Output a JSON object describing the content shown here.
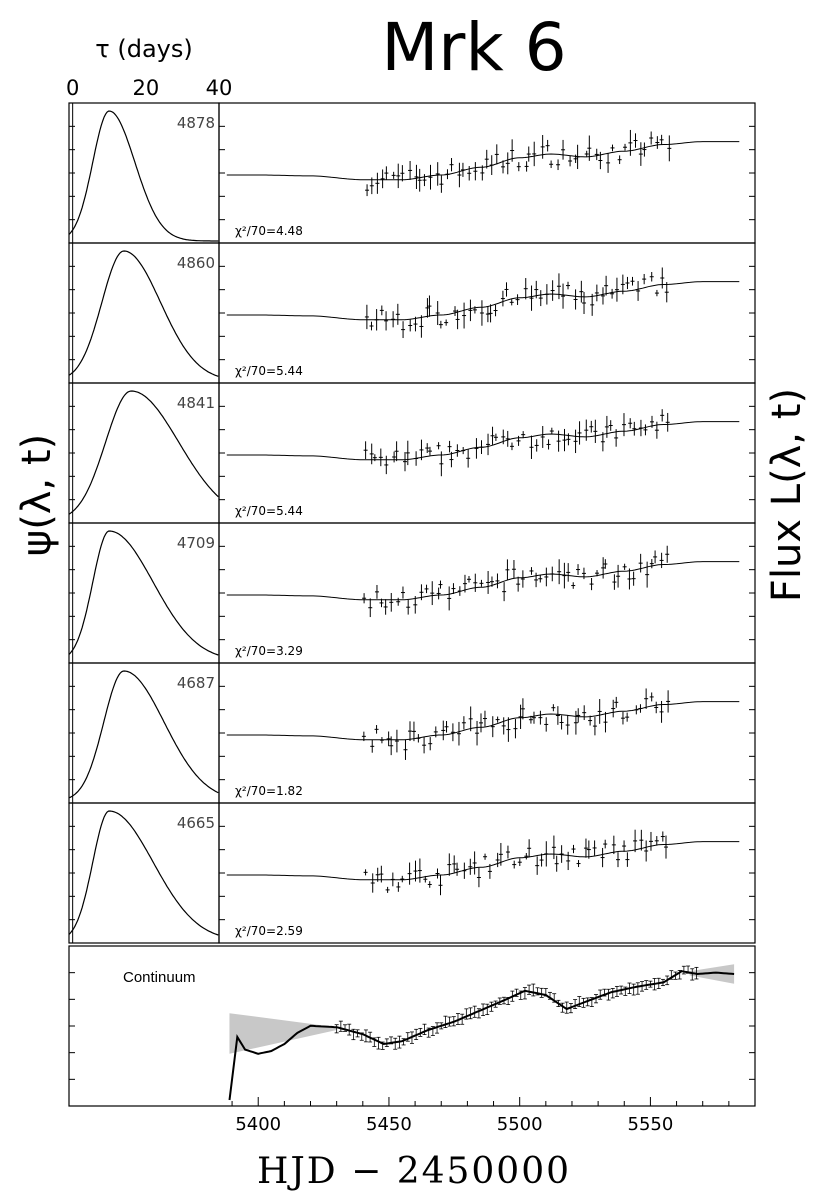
{
  "chart_data": {
    "type": "line",
    "title": "Mrk 6",
    "tau_axis": {
      "label": "τ (days)",
      "ticks": [
        0,
        20,
        40
      ],
      "range": [
        -1,
        40
      ]
    },
    "left_ylabel": "ψ(λ, t)",
    "right_ylabel": "Flux L(λ, t)",
    "xlabel": "HJD − 2450000",
    "xlim": [
      5385,
      5590
    ],
    "xticks": [
      5400,
      5450,
      5500,
      5550
    ],
    "panels": [
      {
        "wavelength": "4878",
        "chi2": "χ²/70=4.48",
        "tf_peak": 10,
        "tf_rise": 4.5,
        "tf_fall": 7
      },
      {
        "wavelength": "4860",
        "chi2": "χ²/70=5.44",
        "tf_peak": 14,
        "tf_rise": 6,
        "tf_fall": 10
      },
      {
        "wavelength": "4841",
        "chi2": "χ²/70=5.44",
        "tf_peak": 16,
        "tf_rise": 7,
        "tf_fall": 13
      },
      {
        "wavelength": "4709",
        "chi2": "χ²/70=3.29",
        "tf_peak": 10,
        "tf_rise": 4.5,
        "tf_fall": 12
      },
      {
        "wavelength": "4687",
        "chi2": "χ²/70=1.82",
        "tf_peak": 14,
        "tf_rise": 5.5,
        "tf_fall": 11
      },
      {
        "wavelength": "4665",
        "chi2": "χ²/70=2.59",
        "tf_peak": 10,
        "tf_rise": 4.5,
        "tf_fall": 12
      }
    ],
    "continuum": {
      "label": "Continuum",
      "model_x": [
        5389,
        5392,
        5395,
        5400,
        5405,
        5410,
        5415,
        5420,
        5430,
        5440,
        5448,
        5455,
        5465,
        5475,
        5485,
        5495,
        5502,
        5510,
        5518,
        5525,
        5535,
        5545,
        5555,
        5562,
        5568,
        5575,
        5582
      ],
      "model_y": [
        0.0,
        0.45,
        0.36,
        0.33,
        0.35,
        0.4,
        0.48,
        0.53,
        0.52,
        0.47,
        0.4,
        0.42,
        0.5,
        0.56,
        0.64,
        0.72,
        0.78,
        0.75,
        0.65,
        0.7,
        0.77,
        0.81,
        0.84,
        0.92,
        0.9,
        0.91,
        0.9
      ]
    }
  }
}
